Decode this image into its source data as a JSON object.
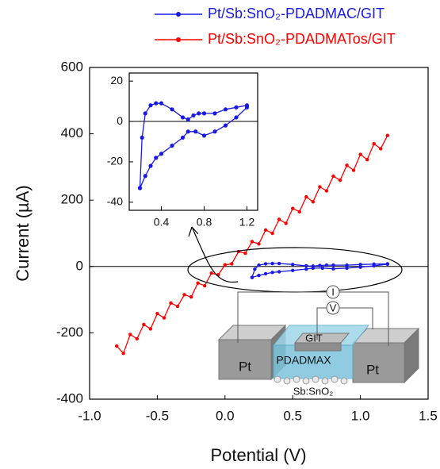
{
  "chart_data": [
    {
      "type": "line",
      "x_label": "Potential (V)",
      "y_label": "Current (µA)",
      "xlim": [
        -1.0,
        1.5
      ],
      "ylim": [
        -400,
        600
      ],
      "xticks": [
        {
          "value": -1.0,
          "label": "-1.0"
        },
        {
          "value": -0.5,
          "label": "-0.5"
        },
        {
          "value": 0,
          "label": "0.0"
        },
        {
          "value": 0.5,
          "label": "0.5"
        },
        {
          "value": 1.0,
          "label": "1.0"
        },
        {
          "value": 1.5,
          "label": "1.5"
        }
      ],
      "yticks": [
        -400,
        -200,
        0,
        200,
        400,
        600
      ],
      "legend": "top",
      "series": [
        {
          "name": "Pt/Sb:SnO₂-PDADMAC/GIT",
          "color": "#1a1ae6",
          "x": [
            0.2,
            0.25,
            0.3,
            0.35,
            0.4,
            0.5,
            0.6,
            0.65,
            0.72,
            0.8,
            0.9,
            1.0,
            1.1,
            1.2,
            1.2,
            1.1,
            1.0,
            0.9,
            0.8,
            0.75,
            0.7,
            0.65,
            0.6,
            0.5,
            0.4,
            0.35,
            0.3,
            0.25,
            0.22,
            0.2
          ],
          "values": [
            -33,
            -27,
            -22,
            -18,
            -16,
            -12,
            -8,
            -5,
            -5,
            -7,
            -5,
            -2,
            2,
            7,
            8,
            7,
            6,
            4,
            4,
            4,
            3,
            1,
            2,
            6,
            9,
            9,
            8,
            4,
            -8,
            -33
          ]
        },
        {
          "name": "Pt/Sb:SnO₂-PDADMATos/GIT",
          "color": "#ff0000",
          "x": [
            -0.8,
            -0.75,
            -0.7,
            -0.65,
            -0.6,
            -0.55,
            -0.5,
            -0.45,
            -0.4,
            -0.35,
            -0.3,
            -0.25,
            -0.2,
            -0.15,
            -0.1,
            -0.05,
            0,
            0.05,
            0.1,
            0.15,
            0.2,
            0.25,
            0.3,
            0.35,
            0.4,
            0.45,
            0.5,
            0.55,
            0.6,
            0.65,
            0.7,
            0.75,
            0.8,
            0.85,
            0.9,
            0.95,
            1.0,
            1.05,
            1.1,
            1.15,
            1.2
          ],
          "values": [
            -240,
            -262,
            -205,
            -218,
            -175,
            -188,
            -142,
            -155,
            -110,
            -120,
            -85,
            -92,
            -50,
            -58,
            -20,
            -25,
            5,
            8,
            45,
            40,
            75,
            68,
            110,
            100,
            142,
            130,
            175,
            165,
            210,
            195,
            240,
            228,
            272,
            260,
            305,
            290,
            338,
            322,
            370,
            355,
            395
          ]
        }
      ],
      "annotations": [
        "Pt",
        "Pt",
        "GIT",
        "PDADMAX",
        "Sb:SnO₂",
        "I",
        "V"
      ]
    },
    {
      "type": "line",
      "xlim": [
        0.1,
        1.3
      ],
      "ylim": [
        -44,
        24
      ],
      "xticks": [
        0.4,
        0.8,
        1.2
      ],
      "yticks": [
        -40,
        -20,
        0,
        20
      ]
    }
  ]
}
